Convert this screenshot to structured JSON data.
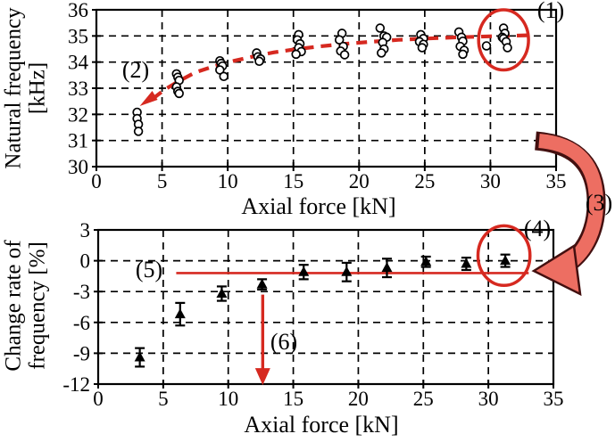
{
  "annotations": [
    {
      "label": "(1)"
    },
    {
      "label": "(2)"
    },
    {
      "label": "(3)"
    },
    {
      "label": "(4)"
    },
    {
      "label": "(5)"
    },
    {
      "label": "(6)"
    }
  ],
  "colors": {
    "red": "#d62920",
    "arrow_fill": "#ed6e62",
    "arrow_outline": "#431010",
    "ink": "#000000",
    "marker_fill": "#ffffff"
  },
  "chart_data": [
    {
      "type": "scatter",
      "title": "",
      "xlabel": "Axial force [kN]",
      "ylabel_lines": [
        "Natural frequency",
        "[kHz]"
      ],
      "xlim": [
        0,
        35
      ],
      "ylim": [
        30,
        36
      ],
      "xticks": [
        0,
        5,
        10,
        15,
        20,
        25,
        30,
        35
      ],
      "yticks": [
        30,
        31,
        32,
        33,
        34,
        35,
        36
      ],
      "grid": "dashed",
      "legend": "none",
      "marker": "open-circle",
      "points": [
        [
          3.1,
          32.08
        ],
        [
          3.1,
          31.84
        ],
        [
          3.2,
          31.62
        ],
        [
          3.2,
          31.35
        ],
        [
          6.1,
          33.55
        ],
        [
          6.2,
          33.42
        ],
        [
          6.3,
          33.3
        ],
        [
          6.1,
          33.05
        ],
        [
          6.2,
          32.88
        ],
        [
          6.3,
          32.8
        ],
        [
          9.4,
          34.05
        ],
        [
          9.5,
          33.95
        ],
        [
          9.6,
          33.85
        ],
        [
          9.4,
          33.7
        ],
        [
          9.7,
          33.45
        ],
        [
          12.2,
          34.35
        ],
        [
          12.3,
          34.2
        ],
        [
          12.5,
          34.12
        ],
        [
          12.4,
          34.03
        ],
        [
          15.4,
          35.05
        ],
        [
          15.3,
          34.85
        ],
        [
          15.5,
          34.7
        ],
        [
          15.4,
          34.55
        ],
        [
          15.6,
          34.4
        ],
        [
          15.2,
          34.3
        ],
        [
          18.7,
          35.1
        ],
        [
          18.5,
          34.85
        ],
        [
          18.8,
          34.6
        ],
        [
          18.6,
          34.42
        ],
        [
          18.9,
          34.28
        ],
        [
          21.6,
          35.3
        ],
        [
          21.9,
          35.0
        ],
        [
          22.1,
          34.95
        ],
        [
          21.8,
          34.75
        ],
        [
          21.9,
          34.5
        ],
        [
          21.7,
          34.35
        ],
        [
          24.7,
          35.05
        ],
        [
          24.9,
          34.9
        ],
        [
          24.6,
          34.78
        ],
        [
          24.9,
          34.68
        ],
        [
          24.8,
          34.55
        ],
        [
          27.6,
          35.15
        ],
        [
          27.8,
          34.95
        ],
        [
          27.9,
          34.8
        ],
        [
          27.7,
          34.6
        ],
        [
          28.0,
          34.45
        ],
        [
          27.9,
          34.3
        ],
        [
          29.7,
          34.62
        ],
        [
          31.0,
          35.3
        ],
        [
          31.1,
          35.1
        ],
        [
          30.9,
          34.95
        ],
        [
          31.0,
          34.9
        ],
        [
          31.2,
          34.78
        ],
        [
          31.3,
          34.55
        ]
      ],
      "fit_curve": {
        "style": "dashed-red",
        "start_arrow_xy": [
          3.3,
          32.32
        ],
        "points": [
          [
            4.3,
            32.6
          ],
          [
            5.2,
            32.95
          ],
          [
            6.2,
            33.25
          ],
          [
            7.5,
            33.6
          ],
          [
            9.0,
            33.85
          ],
          [
            10.5,
            34.05
          ],
          [
            12.0,
            34.22
          ],
          [
            13.5,
            34.37
          ],
          [
            15.0,
            34.48
          ],
          [
            17.0,
            34.6
          ],
          [
            19.0,
            34.7
          ],
          [
            21.0,
            34.78
          ],
          [
            23.0,
            34.85
          ],
          [
            25.0,
            34.9
          ],
          [
            27.0,
            34.94
          ],
          [
            29.0,
            34.97
          ],
          [
            31.0,
            35.0
          ],
          [
            33.2,
            35.03
          ]
        ]
      },
      "highlight_ellipse": {
        "cx": 31.0,
        "cy": 34.85,
        "rx": 1.9,
        "ry": 1.15
      }
    },
    {
      "type": "scatter-errorbar",
      "title": "",
      "xlabel": "Axial force [kN]",
      "ylabel_lines": [
        "Change rate of",
        "frequency [%]"
      ],
      "xlim": [
        0,
        35
      ],
      "ylim": [
        -12,
        3
      ],
      "xticks": [
        0,
        5,
        10,
        15,
        20,
        25,
        30,
        35
      ],
      "yticks": [
        -12,
        -9,
        -6,
        -3,
        0,
        3
      ],
      "grid": "dashed",
      "legend": "none",
      "marker": "filled-triangle",
      "points": [
        {
          "x": 3.2,
          "y": -9.4,
          "err": 0.9
        },
        {
          "x": 6.3,
          "y": -5.2,
          "err": 1.1
        },
        {
          "x": 9.5,
          "y": -3.2,
          "err": 0.7
        },
        {
          "x": 12.6,
          "y": -2.3,
          "err": 0.5
        },
        {
          "x": 15.8,
          "y": -1.1,
          "err": 0.7
        },
        {
          "x": 19.1,
          "y": -1.1,
          "err": 0.9
        },
        {
          "x": 22.2,
          "y": -0.7,
          "err": 0.9
        },
        {
          "x": 25.2,
          "y": -0.1,
          "err": 0.5
        },
        {
          "x": 28.3,
          "y": -0.3,
          "err": 0.6
        },
        {
          "x": 31.3,
          "y": 0.0,
          "err": 0.6
        }
      ],
      "reference_line": {
        "y": -1.2,
        "x_from": 6.0,
        "x_to": 33.1
      },
      "drop_arrow": {
        "x": 12.65,
        "y_from": -3.3,
        "y_to": -12.1
      },
      "highlight_ellipse": {
        "cx": 31.2,
        "cy": 0.5,
        "rx": 2.0,
        "ry": 2.9
      }
    }
  ]
}
